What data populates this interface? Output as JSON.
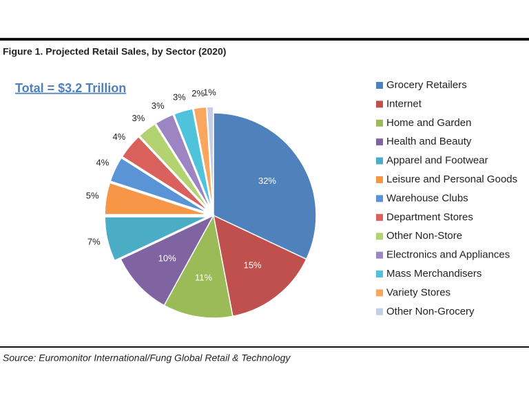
{
  "chart_data": {
    "type": "pie",
    "title": "Figure 1. Projected Retail Sales, by Sector (2020)",
    "annotation": "Total = $3.2 Trillion",
    "source": "Source: Euromonitor International/Fung Global Retail & Technology",
    "categories": [
      "Grocery Retailers",
      "Internet",
      "Home and Garden",
      "Health and Beauty",
      "Apparel and Footwear",
      "Leisure and Personal Goods",
      "Warehouse Clubs",
      "Department Stores",
      "Other Non-Store",
      "Electronics and Appliances",
      "Mass Merchandisers",
      "Variety Stores",
      "Other Non-Grocery"
    ],
    "values": [
      32,
      15,
      11,
      10,
      7,
      5,
      4,
      4,
      3,
      3,
      3,
      2,
      1
    ],
    "value_labels": [
      "32%",
      "15%",
      "11%",
      "10%",
      "7%",
      "5%",
      "4%",
      "4%",
      "3%",
      "3%",
      "3%",
      "2%",
      "1%"
    ],
    "colors": [
      "#4f81bd",
      "#c0504d",
      "#9bbb59",
      "#8064a2",
      "#4bacc6",
      "#f79646",
      "#5a93d6",
      "#d9605c",
      "#b2d36f",
      "#9d84c2",
      "#4fc3dc",
      "#f9a65e",
      "#c4cee4"
    ],
    "legend": "right"
  }
}
